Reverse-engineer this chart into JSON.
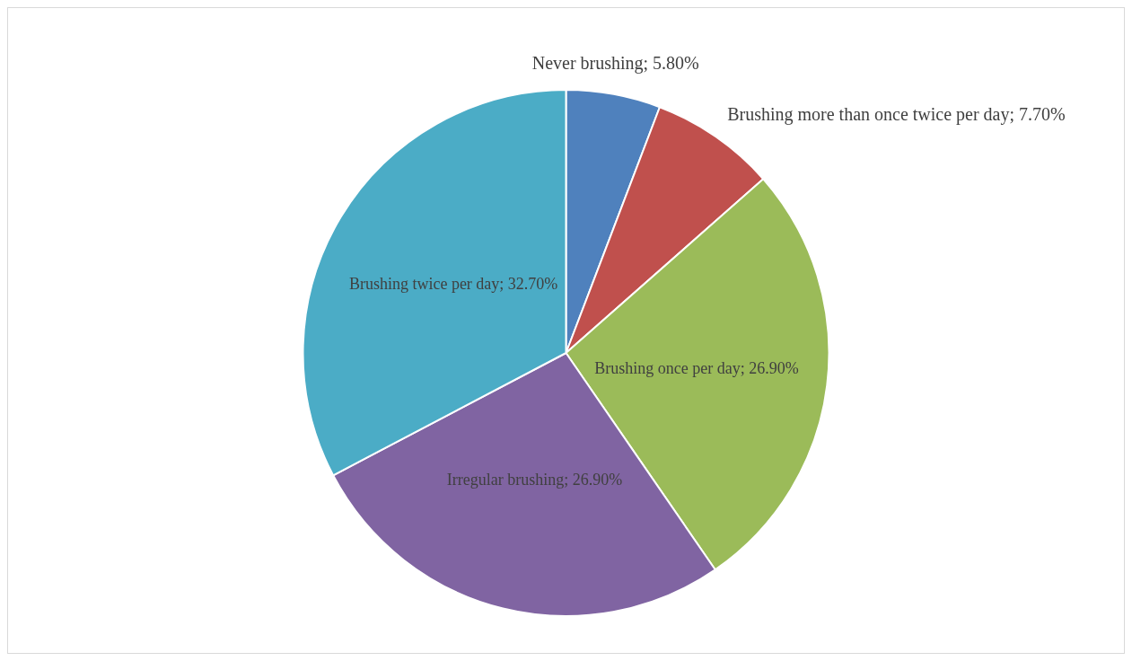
{
  "chart_data": {
    "type": "pie",
    "categories": [
      "Never brushing",
      "Brushing more than once twice per day",
      "Brushing once per day",
      "Irregular brushing",
      "Brushing twice per day"
    ],
    "values": [
      5.8,
      7.7,
      26.9,
      26.9,
      32.7
    ],
    "value_labels": [
      "5.80%",
      "7.70%",
      "26.90%",
      "26.90%",
      "32.70%"
    ],
    "colors": [
      "#4f81bd",
      "#c0504d",
      "#9bbb59",
      "#8064a2",
      "#4bacc6"
    ],
    "legend": false
  }
}
